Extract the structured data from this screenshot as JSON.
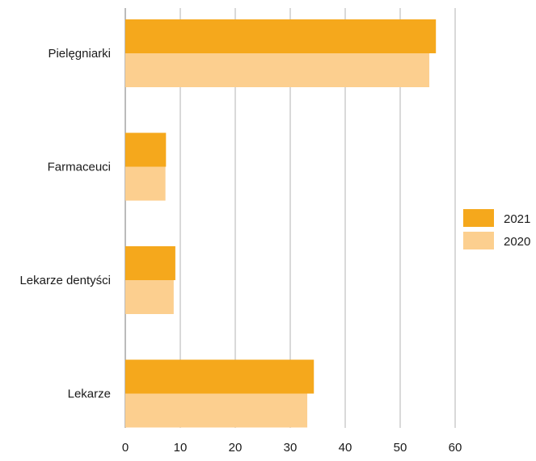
{
  "chart_data": {
    "type": "bar",
    "orientation": "horizontal",
    "categories": [
      "Pielęgniarki",
      "Farmaceuci",
      "Lekarze dentyści",
      "Lekarze"
    ],
    "series": [
      {
        "name": "2021",
        "color": "#f5a81c",
        "values": [
          56.5,
          7.4,
          9.1,
          34.3
        ]
      },
      {
        "name": "2020",
        "color": "#fccf8f",
        "values": [
          55.3,
          7.3,
          8.8,
          33.1
        ]
      }
    ],
    "xticks": [
      "0",
      "10",
      "20",
      "30",
      "40",
      "50",
      "60"
    ],
    "xlim": [
      0,
      60
    ],
    "grid": "vertical",
    "legend_position": "right"
  }
}
